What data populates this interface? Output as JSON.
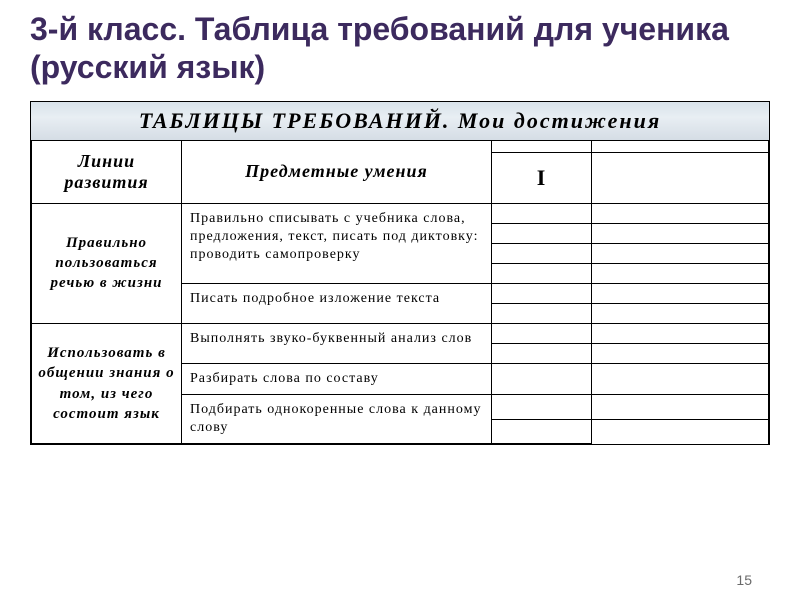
{
  "title": "3-й класс. Таблица требований для ученика (русский язык)",
  "banner": "ТАБЛИЦЫ  ТРЕБОВАНИЙ.  Мои  достижения",
  "headers": {
    "col1": "Линии развития",
    "col2": "Предметные   умения",
    "period": "I"
  },
  "rows": [
    {
      "label": "Правильно пользоваться речью  в  жизни",
      "skills": [
        {
          "text": "Правильно  списывать  с  учебника слова,  предложения,  текст,  писать под  диктовку:  проводить самопроверку",
          "slots": 4
        },
        {
          "text": "Писать  подробное  изложение текста",
          "slots": 2
        }
      ]
    },
    {
      "label": "Использовать в  общении знания  о  том, из  чего состоит  язык",
      "skills": [
        {
          "text": "Выполнять  звуко-буквенный  анализ слов",
          "slots": 2
        },
        {
          "text": "Разбирать  слова  по  составу",
          "slots": 1
        },
        {
          "text": "Подбирать  однокоренные  слова  к данному  слову",
          "slots": 2
        }
      ]
    }
  ],
  "pageNumber": "15",
  "colors": {
    "title": "#3c2a5e",
    "border": "#000000",
    "bannerGradientTop": "#d8e2ea",
    "bannerGradientBottom": "#d5dde5",
    "background": "#ffffff"
  },
  "typography": {
    "titleFontSize": 32,
    "bannerFontSize": 22,
    "headerFontSize": 18,
    "rowLabelFontSize": 15,
    "skillFontSize": 14
  }
}
